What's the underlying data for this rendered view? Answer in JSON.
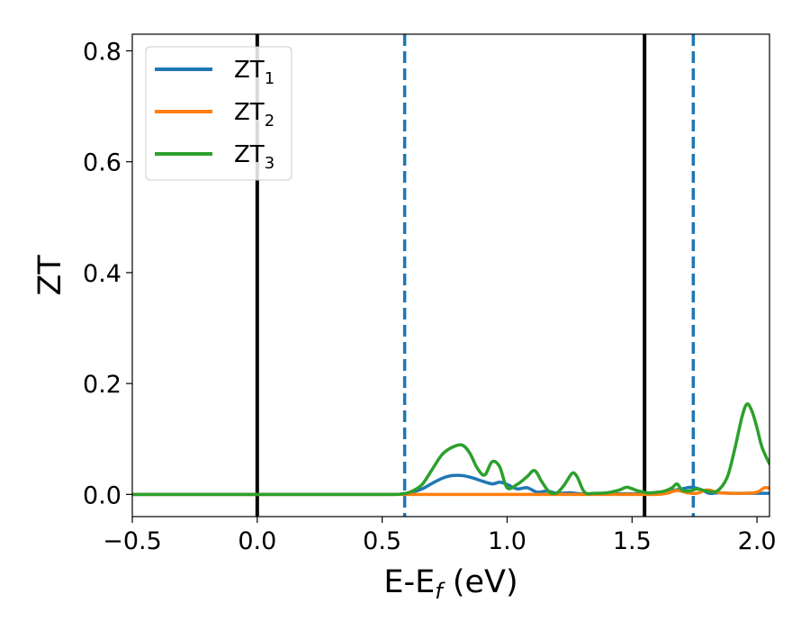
{
  "chart_data": {
    "type": "line",
    "xlabel": "E-E",
    "xlabel_sub": "f",
    "xlabel_unit": " (eV)",
    "ylabel": "ZT",
    "xlim": [
      -0.5,
      2.05
    ],
    "ylim": [
      -0.04,
      0.83
    ],
    "x_ticks": [
      -0.5,
      0.0,
      0.5,
      1.0,
      1.5,
      2.0
    ],
    "x_tick_labels": [
      "−0.5",
      "0.0",
      "0.5",
      "1.0",
      "1.5",
      "2.0"
    ],
    "y_ticks": [
      0.0,
      0.2,
      0.4,
      0.6,
      0.8
    ],
    "y_tick_labels": [
      "0.0",
      "0.2",
      "0.4",
      "0.6",
      "0.8"
    ],
    "grid": false,
    "legend_position": "top-left",
    "vlines": [
      {
        "x": 0.0,
        "style": "solid",
        "color": "#000000"
      },
      {
        "x": 1.55,
        "style": "solid",
        "color": "#000000"
      },
      {
        "x": 0.59,
        "style": "dashed",
        "color": "#1f77b4"
      },
      {
        "x": 1.745,
        "style": "dashed",
        "color": "#1f77b4"
      }
    ],
    "series": [
      {
        "name": "ZT",
        "sub": "1",
        "color": "#1f77b4",
        "x": [
          -0.5,
          0.0,
          0.5,
          0.58,
          0.62,
          0.66,
          0.7,
          0.74,
          0.78,
          0.82,
          0.86,
          0.9,
          0.94,
          0.97,
          1.0,
          1.04,
          1.08,
          1.12,
          1.16,
          1.2,
          1.25,
          1.3,
          1.4,
          1.5,
          1.55,
          1.6,
          1.65,
          1.7,
          1.74,
          1.78,
          1.81,
          1.85,
          1.9,
          2.0,
          2.05
        ],
        "y": [
          0.0,
          0.0,
          0.0,
          0.001,
          0.004,
          0.01,
          0.02,
          0.029,
          0.034,
          0.034,
          0.03,
          0.024,
          0.019,
          0.022,
          0.018,
          0.01,
          0.012,
          0.004,
          0.006,
          0.002,
          0.003,
          0.001,
          0.001,
          0.001,
          0.002,
          0.003,
          0.006,
          0.01,
          0.013,
          0.008,
          0.002,
          0.003,
          0.002,
          0.002,
          0.002
        ]
      },
      {
        "name": "ZT",
        "sub": "2",
        "color": "#ff7f0e",
        "x": [
          -0.5,
          0.0,
          0.5,
          1.0,
          1.5,
          1.6,
          1.64,
          1.68,
          1.72,
          1.76,
          1.8,
          1.85,
          1.9,
          1.95,
          2.0,
          2.03,
          2.05
        ],
        "y": [
          0.0,
          0.0,
          0.0,
          0.0,
          0.0,
          0.0,
          0.002,
          0.007,
          0.003,
          0.002,
          0.008,
          0.003,
          0.002,
          0.002,
          0.004,
          0.012,
          0.011
        ]
      },
      {
        "name": "ZT",
        "sub": "3",
        "color": "#2ca02c",
        "x": [
          -0.5,
          0.0,
          0.5,
          0.58,
          0.62,
          0.66,
          0.7,
          0.74,
          0.78,
          0.82,
          0.85,
          0.88,
          0.91,
          0.94,
          0.97,
          1.0,
          1.04,
          1.08,
          1.11,
          1.14,
          1.17,
          1.2,
          1.23,
          1.26,
          1.28,
          1.31,
          1.35,
          1.4,
          1.45,
          1.48,
          1.52,
          1.56,
          1.6,
          1.63,
          1.66,
          1.68,
          1.7,
          1.73,
          1.76,
          1.8,
          1.84,
          1.88,
          1.91,
          1.94,
          1.96,
          1.98,
          2.0,
          2.02,
          2.05
        ],
        "y": [
          0.0,
          0.0,
          0.0,
          0.001,
          0.006,
          0.018,
          0.045,
          0.072,
          0.085,
          0.089,
          0.075,
          0.048,
          0.035,
          0.059,
          0.05,
          0.012,
          0.018,
          0.032,
          0.043,
          0.022,
          0.004,
          0.003,
          0.018,
          0.038,
          0.032,
          0.004,
          0.002,
          0.003,
          0.008,
          0.013,
          0.007,
          0.003,
          0.004,
          0.006,
          0.012,
          0.019,
          0.008,
          0.006,
          0.01,
          0.006,
          0.006,
          0.03,
          0.08,
          0.14,
          0.163,
          0.15,
          0.12,
          0.085,
          0.055
        ]
      }
    ]
  }
}
